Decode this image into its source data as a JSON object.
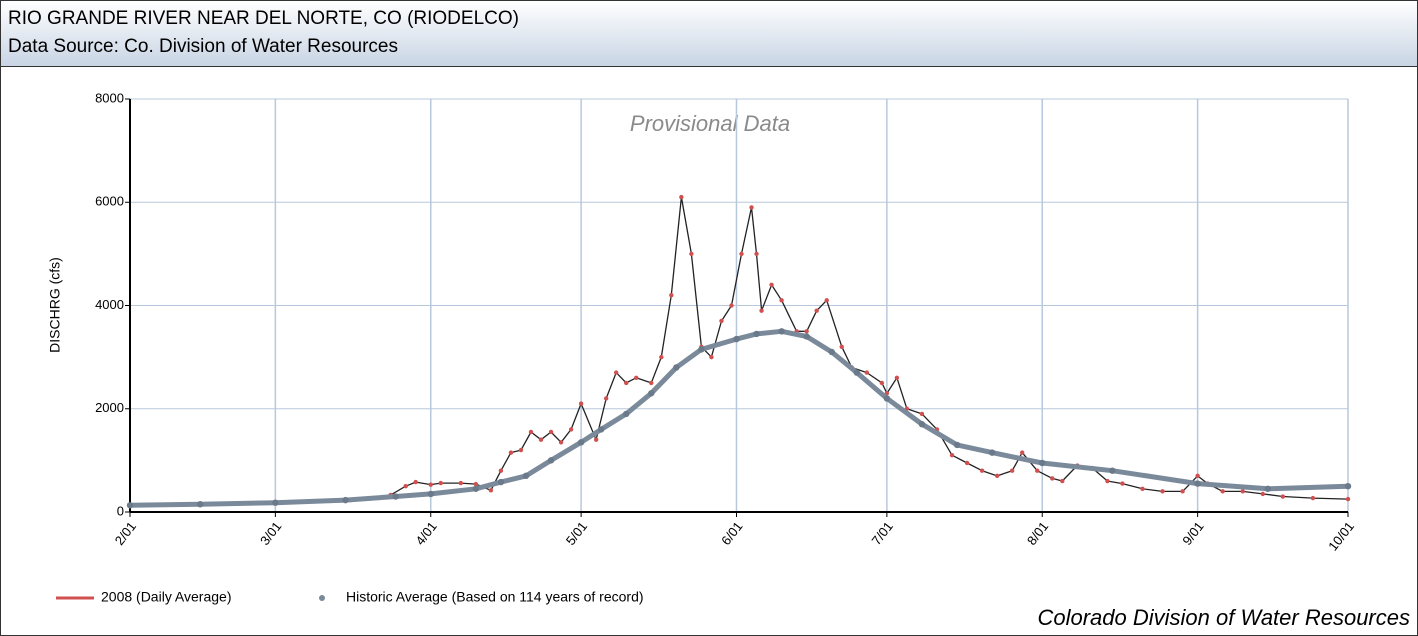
{
  "chart_data": {
    "type": "line",
    "title": "RIO GRANDE RIVER NEAR DEL NORTE, CO (RIODELCO)",
    "subtitle": "Data Source: Co. Division of Water Resources",
    "annotation": "Provisional Data",
    "footer": "Colorado Division of Water Resources",
    "ylabel": "DISCHRG (cfs)",
    "ylim": [
      0,
      8000
    ],
    "yticks": [
      0,
      2000,
      4000,
      6000,
      8000
    ],
    "xlim": [
      "2/01",
      "10/01"
    ],
    "xticks": [
      "2/01",
      "3/01",
      "4/01",
      "5/01",
      "6/01",
      "7/01",
      "8/01",
      "9/01",
      "10/01"
    ],
    "grid": true,
    "legend": "bottom-left",
    "series": [
      {
        "name": "2008 (Daily Average)",
        "color": "#d05050",
        "x": [
          "2/01",
          "2/15",
          "3/01",
          "3/16",
          "3/24",
          "3/27",
          "3/29",
          "4/01",
          "4/03",
          "4/07",
          "4/10",
          "4/13",
          "4/15",
          "4/17",
          "4/19",
          "4/21",
          "4/23",
          "4/25",
          "4/27",
          "4/29",
          "5/01",
          "5/04",
          "5/06",
          "5/08",
          "5/10",
          "5/12",
          "5/15",
          "5/17",
          "5/19",
          "5/21",
          "5/23",
          "5/25",
          "5/27",
          "5/29",
          "5/31",
          "6/02",
          "6/04",
          "6/05",
          "6/06",
          "6/08",
          "6/10",
          "6/13",
          "6/15",
          "6/17",
          "6/19",
          "6/22",
          "6/24",
          "6/27",
          "6/30",
          "7/01",
          "7/03",
          "7/05",
          "7/08",
          "7/11",
          "7/14",
          "7/17",
          "7/20",
          "7/23",
          "7/26",
          "7/28",
          "7/31",
          "8/03",
          "8/05",
          "8/08",
          "8/11",
          "8/14",
          "8/17",
          "8/21",
          "8/25",
          "8/29",
          "9/01",
          "9/03",
          "9/06",
          "9/10",
          "9/14",
          "9/18",
          "9/24",
          "10/01"
        ],
        "values": [
          130,
          150,
          180,
          230,
          330,
          500,
          580,
          530,
          560,
          560,
          540,
          420,
          800,
          1150,
          1200,
          1550,
          1400,
          1550,
          1350,
          1600,
          2100,
          1400,
          2200,
          2700,
          2500,
          2600,
          2500,
          3000,
          4200,
          6100,
          5000,
          3200,
          3000,
          3700,
          4000,
          5000,
          5900,
          5000,
          3900,
          4400,
          4100,
          3500,
          3500,
          3900,
          4100,
          3200,
          2800,
          2700,
          2500,
          2300,
          2600,
          2000,
          1900,
          1600,
          1100,
          950,
          800,
          700,
          800,
          1150,
          800,
          650,
          600,
          900,
          850,
          600,
          550,
          450,
          400,
          400,
          700,
          550,
          400,
          400,
          350,
          300,
          270,
          250
        ]
      },
      {
        "name": "Historic Average (Based on 114 years of record)",
        "color": "#7a8a9a",
        "x": [
          "2/01",
          "2/15",
          "3/01",
          "3/15",
          "3/25",
          "4/01",
          "4/10",
          "4/15",
          "4/20",
          "4/25",
          "5/01",
          "5/05",
          "5/10",
          "5/15",
          "5/20",
          "5/25",
          "6/01",
          "6/05",
          "6/10",
          "6/15",
          "6/20",
          "6/25",
          "7/01",
          "7/08",
          "7/15",
          "7/22",
          "8/01",
          "8/15",
          "9/01",
          "9/15",
          "10/01"
        ],
        "values": [
          130,
          150,
          180,
          230,
          300,
          350,
          450,
          580,
          700,
          1000,
          1350,
          1600,
          1900,
          2300,
          2800,
          3150,
          3350,
          3450,
          3500,
          3400,
          3100,
          2700,
          2200,
          1700,
          1300,
          1150,
          950,
          800,
          550,
          450,
          500
        ]
      }
    ]
  }
}
